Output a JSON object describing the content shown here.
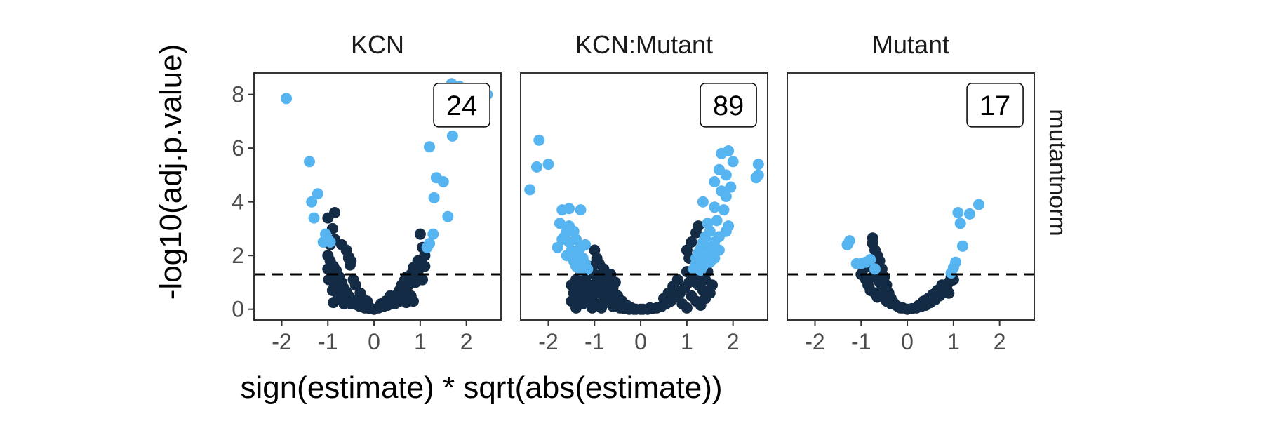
{
  "chart_data": {
    "type": "scatter",
    "xlabel": "sign(estimate) * sqrt(abs(estimate))",
    "ylabel": "-log10(adj.p.value)",
    "row_facet_label": "mutantnorm",
    "xlim": [
      -2.6,
      2.75
    ],
    "ylim": [
      -0.4,
      8.8
    ],
    "x_ticks": [
      -2,
      -1,
      0,
      1,
      2
    ],
    "x_tick_labels": [
      "-2",
      "-1",
      "0",
      "1",
      "2"
    ],
    "y_ticks": [
      0,
      2,
      4,
      6,
      8
    ],
    "y_tick_labels": [
      "0",
      "2",
      "4",
      "6",
      "8"
    ],
    "threshold_y": 1.3,
    "grid": false,
    "colors": {
      "significant": "#56B4F0",
      "not_significant": "#142B45",
      "threshold_line": "#000000",
      "panel_border": "#333333"
    },
    "panels": [
      {
        "name": "KCN",
        "count": "24",
        "significant_points": [
          [
            -1.9,
            7.85
          ],
          [
            -1.4,
            5.5
          ],
          [
            -1.35,
            4.0
          ],
          [
            -1.22,
            4.3
          ],
          [
            -1.3,
            3.4
          ],
          [
            -1.05,
            2.8
          ],
          [
            -0.95,
            2.5
          ],
          [
            -1.0,
            2.6
          ],
          [
            -1.1,
            2.5
          ],
          [
            1.68,
            8.4
          ],
          [
            1.85,
            8.3
          ],
          [
            2.45,
            8.0
          ],
          [
            1.7,
            6.45
          ],
          [
            1.2,
            6.05
          ],
          [
            1.35,
            4.9
          ],
          [
            1.5,
            4.75
          ],
          [
            1.3,
            4.15
          ],
          [
            1.6,
            3.45
          ],
          [
            1.28,
            2.8
          ],
          [
            1.2,
            2.45
          ],
          [
            1.15,
            2.3
          ]
        ],
        "other_points": [
          [
            -1.0,
            3.4
          ],
          [
            -0.85,
            3.6
          ],
          [
            -0.9,
            3.0
          ],
          [
            -0.95,
            2.4
          ],
          [
            -0.85,
            2.6
          ],
          [
            -0.7,
            2.4
          ],
          [
            -0.6,
            2.2
          ],
          [
            -0.55,
            1.95
          ],
          [
            -0.55,
            1.9
          ],
          [
            -0.5,
            1.8
          ],
          [
            -0.52,
            1.65
          ],
          [
            -1.0,
            2.0
          ],
          [
            -0.95,
            1.8
          ],
          [
            -0.88,
            1.6
          ],
          [
            -0.82,
            1.45
          ],
          [
            -0.75,
            1.2
          ],
          [
            -0.7,
            1.0
          ],
          [
            -0.66,
            0.8
          ],
          [
            -0.6,
            0.65
          ],
          [
            -0.55,
            0.5
          ],
          [
            -0.48,
            0.35
          ],
          [
            -0.42,
            0.25
          ],
          [
            -0.35,
            0.15
          ],
          [
            -0.3,
            0.1
          ],
          [
            -0.2,
            0.05
          ],
          [
            -0.1,
            0.02
          ],
          [
            0.0,
            0.0
          ],
          [
            -1.0,
            1.5
          ],
          [
            -0.92,
            1.3
          ],
          [
            -0.98,
            1.1
          ],
          [
            -0.85,
            0.9
          ],
          [
            -0.8,
            0.6
          ],
          [
            -0.78,
            0.4
          ],
          [
            -0.6,
            0.3
          ],
          [
            -0.5,
            0.2
          ],
          [
            -0.45,
            1.1
          ],
          [
            -0.4,
            0.9
          ],
          [
            -0.3,
            0.6
          ],
          [
            -0.25,
            0.4
          ],
          [
            -0.15,
            0.3
          ],
          [
            -0.12,
            0.12
          ],
          [
            -0.65,
            0.2
          ],
          [
            -0.72,
            0.55
          ],
          [
            -0.88,
            0.25
          ],
          [
            -0.9,
            0.7
          ],
          [
            0.1,
            0.05
          ],
          [
            0.2,
            0.1
          ],
          [
            0.3,
            0.15
          ],
          [
            0.4,
            0.35
          ],
          [
            0.5,
            0.55
          ],
          [
            0.55,
            0.7
          ],
          [
            0.6,
            0.9
          ],
          [
            0.65,
            1.05
          ],
          [
            0.7,
            1.2
          ],
          [
            0.55,
            0.3
          ],
          [
            0.8,
            1.3
          ],
          [
            0.85,
            1.55
          ],
          [
            0.95,
            1.8
          ],
          [
            1.05,
            2.3
          ],
          [
            1.1,
            2.0
          ],
          [
            1.0,
            2.8
          ],
          [
            0.95,
            1.4
          ],
          [
            1.05,
            1.1
          ],
          [
            0.8,
            0.5
          ],
          [
            0.75,
            0.9
          ],
          [
            0.9,
            1.0
          ],
          [
            0.6,
            0.4
          ],
          [
            0.45,
            0.2
          ],
          [
            0.35,
            0.5
          ],
          [
            0.25,
            0.3
          ],
          [
            0.15,
            0.2
          ],
          [
            0.85,
            0.3
          ],
          [
            1.1,
            1.6
          ],
          [
            0.7,
            0.25
          ],
          [
            0.65,
            0.6
          ]
        ]
      },
      {
        "name": "KCN:Mutant",
        "count": "89",
        "significant_points": [
          [
            -2.2,
            6.3
          ],
          [
            -2.25,
            5.3
          ],
          [
            -2.0,
            5.4
          ],
          [
            -2.4,
            4.45
          ],
          [
            -1.7,
            3.7
          ],
          [
            -1.55,
            3.75
          ],
          [
            -1.3,
            3.7
          ],
          [
            -1.75,
            3.2
          ],
          [
            -1.55,
            3.1
          ],
          [
            -1.6,
            2.9
          ],
          [
            -1.45,
            2.9
          ],
          [
            -1.65,
            2.7
          ],
          [
            -1.4,
            2.6
          ],
          [
            -1.55,
            2.5
          ],
          [
            -1.8,
            2.3
          ],
          [
            -1.3,
            2.3
          ],
          [
            -1.5,
            2.2
          ],
          [
            -1.35,
            2.1
          ],
          [
            -1.6,
            2.0
          ],
          [
            -1.25,
            1.9
          ],
          [
            -1.45,
            1.8
          ],
          [
            -1.2,
            1.7
          ],
          [
            -1.4,
            1.6
          ],
          [
            -1.15,
            1.5
          ],
          [
            -1.3,
            1.45
          ],
          [
            -1.7,
            2.6
          ],
          [
            -1.2,
            2.4
          ],
          [
            1.75,
            5.8
          ],
          [
            1.9,
            5.9
          ],
          [
            2.0,
            5.5
          ],
          [
            2.55,
            5.4
          ],
          [
            2.5,
            4.9
          ],
          [
            2.55,
            5.0
          ],
          [
            1.7,
            5.2
          ],
          [
            1.85,
            5.0
          ],
          [
            1.95,
            4.55
          ],
          [
            1.6,
            4.75
          ],
          [
            1.75,
            4.4
          ],
          [
            1.85,
            4.2
          ],
          [
            1.35,
            4.0
          ],
          [
            1.6,
            3.8
          ],
          [
            1.8,
            3.7
          ],
          [
            1.45,
            3.2
          ],
          [
            1.65,
            3.3
          ],
          [
            1.9,
            3.1
          ],
          [
            1.85,
            2.9
          ],
          [
            1.5,
            2.9
          ],
          [
            1.7,
            2.7
          ],
          [
            1.4,
            2.7
          ],
          [
            1.6,
            2.5
          ],
          [
            1.35,
            2.5
          ],
          [
            1.5,
            2.3
          ],
          [
            1.3,
            2.25
          ],
          [
            1.55,
            2.1
          ],
          [
            1.25,
            2.1
          ],
          [
            1.45,
            1.95
          ],
          [
            1.2,
            1.9
          ],
          [
            1.4,
            1.8
          ],
          [
            1.2,
            1.7
          ],
          [
            1.35,
            1.6
          ],
          [
            1.15,
            1.5
          ],
          [
            1.3,
            1.45
          ],
          [
            1.7,
            2.2
          ],
          [
            1.6,
            1.9
          ],
          [
            1.5,
            1.75
          ]
        ],
        "other_points": [
          [
            -1.0,
            2.2
          ],
          [
            -0.95,
            1.9
          ],
          [
            -1.05,
            1.6
          ],
          [
            -0.9,
            1.7
          ],
          [
            -0.8,
            1.5
          ],
          [
            -1.0,
            1.3
          ],
          [
            -0.85,
            1.2
          ],
          [
            -0.95,
            1.0
          ],
          [
            -0.75,
            0.9
          ],
          [
            -0.9,
            0.75
          ],
          [
            -0.7,
            0.6
          ],
          [
            -0.8,
            0.45
          ],
          [
            -0.65,
            0.35
          ],
          [
            -0.75,
            0.25
          ],
          [
            -0.55,
            0.2
          ],
          [
            -0.6,
            0.1
          ],
          [
            -0.45,
            0.05
          ],
          [
            -0.35,
            0.02
          ],
          [
            -0.25,
            0.0
          ],
          [
            -0.15,
            0.0
          ],
          [
            -1.3,
            1.3
          ],
          [
            -1.4,
            1.1
          ],
          [
            -1.5,
            0.9
          ],
          [
            -1.2,
            1.1
          ],
          [
            -1.3,
            0.8
          ],
          [
            -1.45,
            0.6
          ],
          [
            -1.1,
            0.9
          ],
          [
            -1.2,
            0.55
          ],
          [
            -1.35,
            0.4
          ],
          [
            -1.0,
            0.6
          ],
          [
            -1.1,
            0.3
          ],
          [
            -1.25,
            0.2
          ],
          [
            -1.5,
            0.3
          ],
          [
            -0.95,
            0.2
          ],
          [
            -1.05,
            0.05
          ],
          [
            -0.85,
            0.05
          ],
          [
            -1.4,
            0.05
          ],
          [
            -0.7,
            1.1
          ],
          [
            -0.6,
            0.8
          ],
          [
            -0.5,
            0.5
          ],
          [
            -0.4,
            0.3
          ],
          [
            -0.3,
            0.15
          ],
          [
            -0.55,
            1.0
          ],
          [
            -0.65,
            1.3
          ],
          [
            0.0,
            0.0
          ],
          [
            0.15,
            0.0
          ],
          [
            0.25,
            0.02
          ],
          [
            0.35,
            0.05
          ],
          [
            0.45,
            0.1
          ],
          [
            0.55,
            0.2
          ],
          [
            0.65,
            0.3
          ],
          [
            0.75,
            0.45
          ],
          [
            0.85,
            0.6
          ],
          [
            0.95,
            0.8
          ],
          [
            1.05,
            1.0
          ],
          [
            1.15,
            1.2
          ],
          [
            1.0,
            1.4
          ],
          [
            1.2,
            1.55
          ],
          [
            1.3,
            1.3
          ],
          [
            1.4,
            1.1
          ],
          [
            1.25,
            0.9
          ],
          [
            1.35,
            0.7
          ],
          [
            1.1,
            0.5
          ],
          [
            1.2,
            0.3
          ],
          [
            1.3,
            0.15
          ],
          [
            0.9,
            0.2
          ],
          [
            1.0,
            0.05
          ],
          [
            1.4,
            0.4
          ],
          [
            1.5,
            0.6
          ],
          [
            1.55,
            0.9
          ],
          [
            1.45,
            1.4
          ],
          [
            1.0,
            2.2
          ],
          [
            1.1,
            2.5
          ],
          [
            1.2,
            2.85
          ],
          [
            1.25,
            3.1
          ],
          [
            1.05,
            1.9
          ],
          [
            0.8,
            1.1
          ],
          [
            0.7,
            0.85
          ],
          [
            0.6,
            0.6
          ],
          [
            0.5,
            0.4
          ],
          [
            -0.1,
            0.0
          ],
          [
            0.05,
            0.0
          ],
          [
            -0.2,
            0.05
          ],
          [
            0.2,
            0.05
          ]
        ]
      },
      {
        "name": "Mutant",
        "count": "17",
        "significant_points": [
          [
            -1.3,
            2.4
          ],
          [
            -1.25,
            2.55
          ],
          [
            -1.1,
            1.7
          ],
          [
            -1.0,
            1.7
          ],
          [
            -0.9,
            1.75
          ],
          [
            -0.8,
            1.85
          ],
          [
            -0.7,
            1.5
          ],
          [
            1.55,
            3.9
          ],
          [
            1.35,
            3.55
          ],
          [
            1.1,
            3.6
          ],
          [
            1.15,
            3.2
          ],
          [
            1.2,
            2.35
          ],
          [
            1.05,
            1.75
          ],
          [
            1.0,
            1.55
          ],
          [
            0.95,
            1.35
          ]
        ],
        "other_points": [
          [
            -0.75,
            2.65
          ],
          [
            -0.75,
            2.45
          ],
          [
            -0.7,
            2.2
          ],
          [
            -0.65,
            2.0
          ],
          [
            -0.8,
            1.6
          ],
          [
            -0.6,
            1.8
          ],
          [
            -0.55,
            1.5
          ],
          [
            -0.65,
            1.3
          ],
          [
            -0.5,
            1.2
          ],
          [
            -0.6,
            1.0
          ],
          [
            -0.45,
            0.9
          ],
          [
            -0.55,
            0.75
          ],
          [
            -0.4,
            0.6
          ],
          [
            -0.5,
            0.5
          ],
          [
            -0.35,
            0.4
          ],
          [
            -0.45,
            0.3
          ],
          [
            -0.3,
            0.25
          ],
          [
            -0.25,
            0.15
          ],
          [
            -0.2,
            0.1
          ],
          [
            -0.1,
            0.05
          ],
          [
            -1.0,
            1.3
          ],
          [
            -0.9,
            1.1
          ],
          [
            -0.85,
            0.9
          ],
          [
            -0.95,
            1.5
          ],
          [
            -0.8,
            0.7
          ],
          [
            -0.7,
            0.6
          ],
          [
            -0.65,
            0.45
          ],
          [
            -0.75,
            1.2
          ],
          [
            -0.35,
            0.2
          ],
          [
            -0.15,
            0.05
          ],
          [
            0.0,
            0.0
          ],
          [
            0.1,
            0.02
          ],
          [
            0.2,
            0.05
          ],
          [
            0.3,
            0.1
          ],
          [
            0.4,
            0.15
          ],
          [
            0.5,
            0.25
          ],
          [
            0.6,
            0.35
          ],
          [
            0.7,
            0.5
          ],
          [
            0.8,
            0.65
          ],
          [
            0.85,
            0.8
          ],
          [
            0.9,
            1.0
          ],
          [
            0.95,
            1.2
          ],
          [
            0.75,
            0.9
          ],
          [
            0.65,
            0.7
          ],
          [
            0.55,
            0.55
          ],
          [
            0.45,
            0.4
          ],
          [
            0.9,
            0.6
          ],
          [
            1.0,
            1.1
          ],
          [
            0.35,
            0.3
          ],
          [
            0.25,
            0.15
          ]
        ]
      }
    ]
  }
}
